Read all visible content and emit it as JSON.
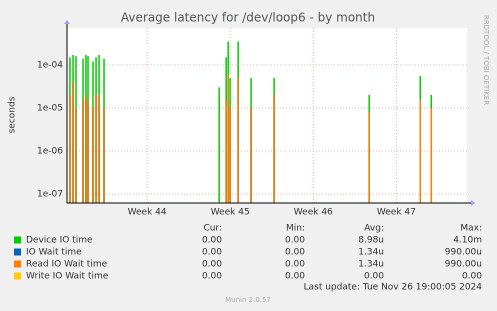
{
  "chart_data": {
    "type": "spike",
    "title": "Average latency for /dev/loop6 - by month",
    "y_label": "seconds",
    "side_text": "RRDTOOL / TOBI OETIKER",
    "log_y": true,
    "grid": true,
    "xlim": [
      0,
      33.7
    ],
    "xticks": [
      {
        "value": 6.75,
        "label": "Week 44"
      },
      {
        "value": 13.75,
        "label": "Week 45"
      },
      {
        "value": 20.75,
        "label": "Week 46"
      },
      {
        "value": 27.75,
        "label": "Week 47"
      }
    ],
    "ylim": [
      6.2e-08,
      0.00072
    ],
    "yticks": [
      {
        "value": 1e-07,
        "label": "1e-07"
      },
      {
        "value": 1e-06,
        "label": "1e-06"
      },
      {
        "value": 1e-05,
        "label": "1e-05"
      },
      {
        "value": 0.0001,
        "label": "1e-04"
      }
    ],
    "x": [
      0.25,
      0.51,
      0.76,
      1.35,
      1.6,
      1.77,
      2.19,
      2.45,
      2.7,
      3.12,
      12.82,
      13.41,
      13.58,
      13.74,
      14.42,
      15.51,
      17.45,
      25.46,
      29.76,
      30.69
    ],
    "series": [
      {
        "name": "Device IO time",
        "color": "#00cc00",
        "values": [
          0.00015,
          0.00017,
          0.00016,
          0.00014,
          0.00017,
          0.00016,
          0.00012,
          0.00015,
          0.00017,
          0.00014,
          3e-05,
          0.00015,
          0.00035,
          5e-05,
          0.00035,
          5e-05,
          5e-05,
          2e-05,
          5.5e-05,
          2e-05
        ]
      },
      {
        "name": "IO Wait time",
        "color": "#0066b3",
        "values": [
          2e-05,
          4e-05,
          1e-05,
          1.5e-05,
          2e-05,
          1.5e-05,
          1e-05,
          2e-05,
          2e-05,
          1e-05,
          null,
          1.5e-05,
          6e-05,
          1e-05,
          5e-05,
          1e-05,
          2e-05,
          8e-06,
          1.5e-05,
          1e-05
        ]
      },
      {
        "name": "Read IO Wait time",
        "color": "#ff8000",
        "values": [
          2e-05,
          4e-05,
          1e-05,
          1.5e-05,
          2e-05,
          1.5e-05,
          1e-05,
          2e-05,
          2e-05,
          1e-05,
          null,
          1.5e-05,
          6e-05,
          1e-05,
          5e-05,
          1e-05,
          2e-05,
          8e-06,
          1.5e-05,
          1e-05
        ]
      },
      {
        "name": "Write IO Wait time",
        "color": "#ffcc00",
        "values": [
          0,
          0,
          0,
          0,
          0,
          0,
          0,
          0,
          0,
          0,
          0,
          0,
          0,
          0,
          0,
          0,
          0,
          0,
          0,
          0
        ]
      }
    ],
    "stats": {
      "headers": [
        "Cur:",
        "Min:",
        "Avg:",
        "Max:"
      ],
      "rows": [
        [
          "0.00",
          "0.00",
          "8.98u",
          "4.10m"
        ],
        [
          "0.00",
          "0.00",
          "1.34u",
          "990.00u"
        ],
        [
          "0.00",
          "0.00",
          "1.34u",
          "990.00u"
        ],
        [
          "0.00",
          "0.00",
          "0.00",
          "0.00"
        ]
      ]
    },
    "last_update": "Last update: Tue Nov 26 19:00:05 2024",
    "footer": "Munin 2.0.57"
  }
}
